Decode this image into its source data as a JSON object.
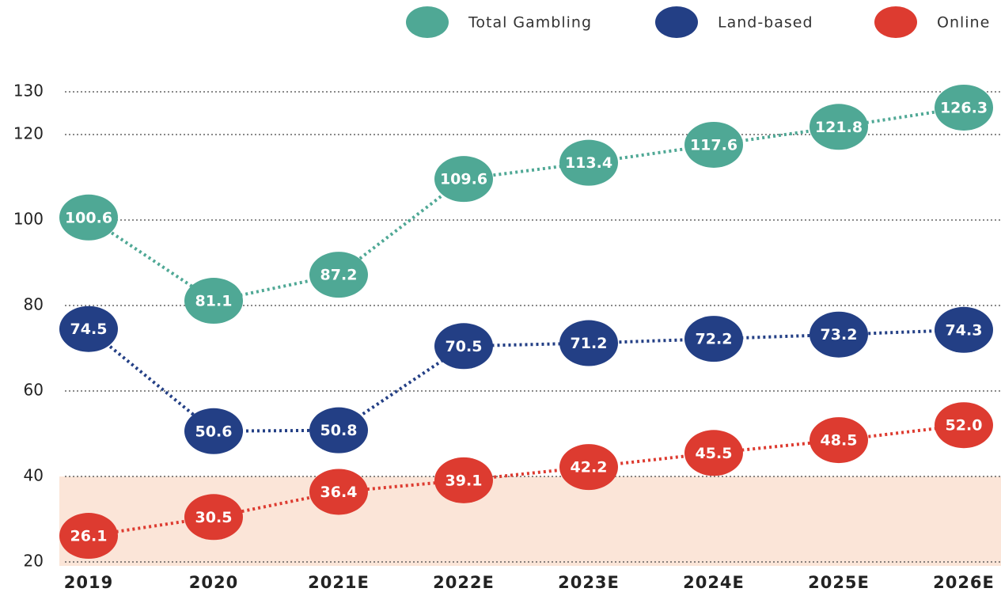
{
  "chart_data": {
    "type": "line",
    "categories": [
      "2019",
      "2020",
      "2021E",
      "2022E",
      "2023E",
      "2024E",
      "2025E",
      "2026E"
    ],
    "series": [
      {
        "name": "Total Gambling",
        "color": "#4fa895",
        "values": [
          100.6,
          81.1,
          87.2,
          109.6,
          113.4,
          117.6,
          121.8,
          126.3
        ]
      },
      {
        "name": "Land-based",
        "color": "#233f85",
        "values": [
          74.5,
          50.6,
          50.8,
          70.5,
          71.2,
          72.2,
          73.2,
          74.3
        ]
      },
      {
        "name": "Online",
        "color": "#dd3b30",
        "values": [
          26.1,
          30.5,
          36.4,
          39.1,
          42.2,
          45.5,
          48.5,
          52.0
        ],
        "value_labels": [
          "26.1",
          "30.5",
          "36.4",
          "39.1",
          "42.2",
          "45.5",
          "48.5",
          "52.0"
        ]
      }
    ],
    "ylim": [
      20,
      140
    ],
    "yticks": [
      20,
      40,
      60,
      80,
      100,
      120,
      130
    ],
    "grid": true,
    "shaded_range": [
      20,
      40
    ],
    "shaded_color": "#fbe5d8",
    "legend": "top-right"
  }
}
